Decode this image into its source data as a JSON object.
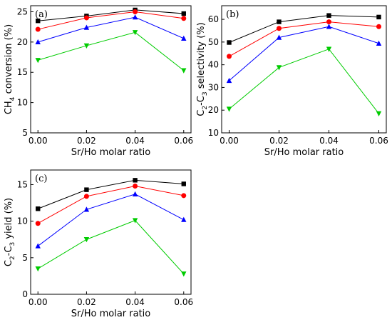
{
  "chart_data": [
    {
      "type": "line",
      "panel_label": "(a)",
      "xlabel": "Sr/Ho molar ratio",
      "ylabel_parts": [
        "CH",
        "4",
        " conversion (%)"
      ],
      "x": [
        0.0,
        0.02,
        0.04,
        0.06
      ],
      "x_tick_labels": [
        "0.00",
        "0.02",
        "0.04",
        "0.06"
      ],
      "xlim": [
        -0.003,
        0.063
      ],
      "ylim": [
        5,
        26
      ],
      "y_ticks": [
        5,
        10,
        15,
        20,
        25
      ],
      "y_tick_labels": [
        "5",
        "10",
        "15",
        "20",
        "25"
      ],
      "series": [
        {
          "color": "#000000",
          "marker": "square",
          "values": [
            23.5,
            24.3,
            25.3,
            24.7
          ]
        },
        {
          "color": "#ff0000",
          "marker": "circle",
          "values": [
            22.1,
            24.0,
            25.0,
            23.9
          ]
        },
        {
          "color": "#0000ff",
          "marker": "triangle-up",
          "values": [
            20.0,
            22.4,
            24.1,
            20.6
          ]
        },
        {
          "color": "#00cc00",
          "marker": "triangle-down",
          "values": [
            17.0,
            19.4,
            21.6,
            15.3
          ]
        }
      ]
    },
    {
      "type": "line",
      "panel_label": "(b)",
      "xlabel": "Sr/Ho molar ratio",
      "ylabel_parts": [
        "C",
        "2",
        "-C",
        "3",
        " selectivity (%)"
      ],
      "x": [
        0.0,
        0.02,
        0.04,
        0.06
      ],
      "x_tick_labels": [
        "0.00",
        "0.02",
        "0.04",
        "0.06"
      ],
      "xlim": [
        -0.003,
        0.063
      ],
      "ylim": [
        10,
        66
      ],
      "y_ticks": [
        10,
        20,
        30,
        40,
        50,
        60
      ],
      "y_tick_labels": [
        "10",
        "20",
        "30",
        "40",
        "50",
        "60"
      ],
      "series": [
        {
          "color": "#000000",
          "marker": "square",
          "values": [
            49.8,
            58.9,
            61.7,
            61.0
          ]
        },
        {
          "color": "#ff0000",
          "marker": "circle",
          "values": [
            43.7,
            56.0,
            58.9,
            56.8
          ]
        },
        {
          "color": "#0000ff",
          "marker": "triangle-up",
          "values": [
            33.0,
            52.0,
            56.8,
            49.4
          ]
        },
        {
          "color": "#00cc00",
          "marker": "triangle-down",
          "values": [
            20.5,
            38.8,
            46.9,
            18.5
          ]
        }
      ]
    },
    {
      "type": "line",
      "panel_label": "(c)",
      "xlabel": "Sr/Ho molar ratio",
      "ylabel_parts": [
        "C",
        "2",
        "-C",
        "3",
        " yield (%)"
      ],
      "x": [
        0.0,
        0.02,
        0.04,
        0.06
      ],
      "x_tick_labels": [
        "0.00",
        "0.02",
        "0.04",
        "0.06"
      ],
      "xlim": [
        -0.003,
        0.063
      ],
      "ylim": [
        0,
        17
      ],
      "y_ticks": [
        0,
        5,
        10,
        15
      ],
      "y_tick_labels": [
        "0",
        "5",
        "10",
        "15"
      ],
      "series": [
        {
          "color": "#000000",
          "marker": "square",
          "values": [
            11.7,
            14.3,
            15.6,
            15.1
          ]
        },
        {
          "color": "#ff0000",
          "marker": "circle",
          "values": [
            9.7,
            13.4,
            14.8,
            13.5
          ]
        },
        {
          "color": "#0000ff",
          "marker": "triangle-up",
          "values": [
            6.6,
            11.6,
            13.7,
            10.2
          ]
        },
        {
          "color": "#00cc00",
          "marker": "triangle-down",
          "values": [
            3.5,
            7.5,
            10.1,
            2.8
          ]
        }
      ]
    }
  ]
}
